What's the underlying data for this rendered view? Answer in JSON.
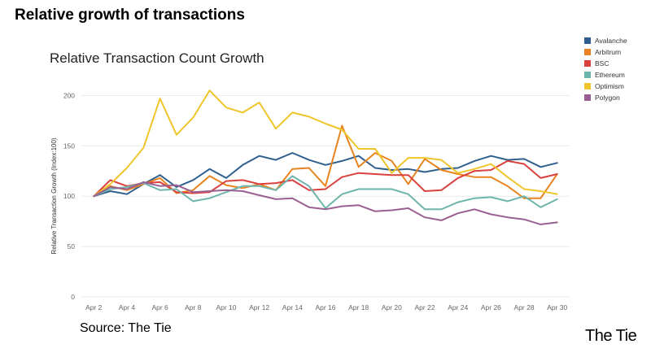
{
  "page": {
    "title": "Relative growth of transactions",
    "source": "Source: The Tie",
    "brand": "The Tie"
  },
  "chart_data": {
    "type": "line",
    "title": "Relative Transaction Count Growth",
    "xlabel": "",
    "ylabel": "Relative Transaction Growth (Index:100)",
    "ylim": [
      0,
      210
    ],
    "yticks": [
      0,
      50,
      100,
      150,
      200
    ],
    "grid": true,
    "legend_position": "top-right",
    "x": [
      2,
      3,
      4,
      5,
      6,
      7,
      8,
      9,
      10,
      11,
      12,
      13,
      14,
      15,
      16,
      17,
      18,
      19,
      20,
      21,
      22,
      23,
      24,
      25,
      26,
      27,
      28,
      29,
      30
    ],
    "xticks": [
      {
        "x": 2,
        "label": "Apr 2"
      },
      {
        "x": 4,
        "label": "Apr 4"
      },
      {
        "x": 6,
        "label": "Apr 6"
      },
      {
        "x": 8,
        "label": "Apr 8"
      },
      {
        "x": 10,
        "label": "Apr 10"
      },
      {
        "x": 12,
        "label": "Apr 12"
      },
      {
        "x": 14,
        "label": "Apr 14"
      },
      {
        "x": 16,
        "label": "Apr 16"
      },
      {
        "x": 18,
        "label": "Apr 18"
      },
      {
        "x": 20,
        "label": "Apr 20"
      },
      {
        "x": 22,
        "label": "Apr 22"
      },
      {
        "x": 24,
        "label": "Apr 24"
      },
      {
        "x": 26,
        "label": "Apr 26"
      },
      {
        "x": 28,
        "label": "Apr 28"
      },
      {
        "x": 30,
        "label": "Apr 30"
      }
    ],
    "series": [
      {
        "name": "Avalanche",
        "color": "#2e5f8e",
        "values": [
          100,
          105,
          102,
          112,
          121,
          109,
          116,
          127,
          118,
          131,
          140,
          136,
          143,
          136,
          131,
          135,
          140,
          128,
          126,
          127,
          124,
          127,
          128,
          135,
          140,
          136,
          137,
          129,
          133
        ]
      },
      {
        "name": "Arbitrum",
        "color": "#e8841f",
        "values": [
          100,
          110,
          106,
          112,
          118,
          103,
          106,
          120,
          111,
          108,
          112,
          106,
          127,
          128,
          110,
          170,
          129,
          143,
          135,
          112,
          137,
          126,
          122,
          119,
          119,
          110,
          98,
          98,
          122
        ]
      },
      {
        "name": "BSC",
        "color": "#d9413f",
        "values": [
          100,
          116,
          110,
          113,
          114,
          104,
          103,
          104,
          115,
          116,
          112,
          113,
          116,
          106,
          107,
          119,
          123,
          122,
          121,
          121,
          105,
          106,
          118,
          125,
          126,
          135,
          132,
          118,
          122
        ]
      },
      {
        "name": "Ethereum",
        "color": "#6eb5ac",
        "values": [
          100,
          107,
          109,
          113,
          106,
          107,
          95,
          98,
          104,
          110,
          110,
          106,
          120,
          110,
          88,
          102,
          107,
          107,
          107,
          102,
          87,
          87,
          94,
          98,
          99,
          95,
          100,
          89,
          97
        ]
      },
      {
        "name": "Optimism",
        "color": "#efc52c",
        "values": [
          100,
          112,
          128,
          148,
          197,
          161,
          178,
          205,
          188,
          183,
          193,
          167,
          183,
          179,
          172,
          166,
          147,
          147,
          123,
          138,
          138,
          136,
          123,
          127,
          132,
          119,
          107,
          105,
          102
        ]
      },
      {
        "name": "Polygon",
        "color": "#9a5f91",
        "values": [
          100,
          109,
          107,
          114,
          110,
          111,
          104,
          105,
          106,
          105,
          101,
          97,
          98,
          89,
          87,
          90,
          91,
          85,
          86,
          88,
          79,
          76,
          83,
          87,
          82,
          79,
          77,
          72,
          74
        ]
      }
    ]
  }
}
